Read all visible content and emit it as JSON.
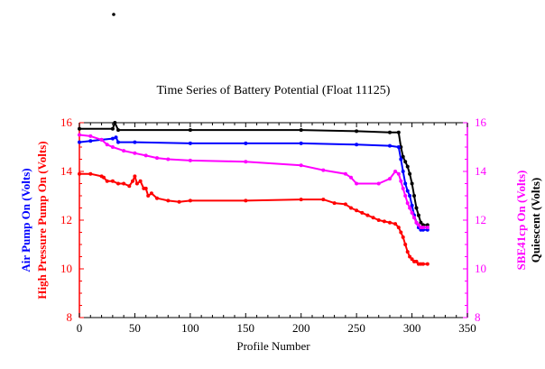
{
  "chart_data": {
    "type": "line",
    "title": "Time Series of Battery Potential (Float 11125)",
    "xlabel": "Profile Number",
    "xlim": [
      0,
      350
    ],
    "ylim": [
      8,
      16
    ],
    "xticks": [
      0,
      50,
      100,
      150,
      200,
      250,
      300,
      350
    ],
    "yticks": [
      8,
      10,
      12,
      14,
      16
    ],
    "left_axis_labels": [
      {
        "text": "Air Pump On (Volts)",
        "color": "#0000ff"
      },
      {
        "text": "High Pressure Pump On (Volts)",
        "color": "#ff0000"
      }
    ],
    "right_axis_labels": [
      {
        "text": "SBE41cp On (Volts)",
        "color": "#ff00ff"
      },
      {
        "text": "Quiescent (Volts)",
        "color": "#000000"
      }
    ],
    "left_axis_color": "#ff0000",
    "right_axis_color": "#ff00ff",
    "series": [
      {
        "color": "#000000",
        "x": [
          0,
          30,
          32,
          35,
          100,
          200,
          250,
          280,
          288,
          290,
          292,
          294,
          296,
          298,
          300,
          302,
          304,
          306,
          308,
          310,
          314
        ],
        "y": [
          15.75,
          15.75,
          16.0,
          15.7,
          15.7,
          15.7,
          15.65,
          15.6,
          15.6,
          15.0,
          14.6,
          14.4,
          14.2,
          13.9,
          13.5,
          13.0,
          12.5,
          12.2,
          11.9,
          11.8,
          11.8
        ]
      },
      {
        "color": "#0000ff",
        "x": [
          0,
          10,
          20,
          30,
          33,
          35,
          50,
          100,
          150,
          200,
          250,
          280,
          288,
          290,
          292,
          294,
          296,
          298,
          300,
          302,
          304,
          306,
          308,
          310,
          314
        ],
        "y": [
          15.2,
          15.25,
          15.3,
          15.35,
          15.4,
          15.2,
          15.2,
          15.15,
          15.15,
          15.15,
          15.1,
          15.05,
          15.0,
          14.5,
          14.0,
          13.5,
          13.2,
          13.0,
          12.6,
          12.2,
          11.9,
          11.7,
          11.6,
          11.6,
          11.6
        ]
      },
      {
        "color": "#ff00ff",
        "x": [
          0,
          10,
          20,
          25,
          30,
          40,
          50,
          60,
          70,
          80,
          100,
          150,
          200,
          220,
          240,
          245,
          250,
          270,
          280,
          285,
          288,
          290,
          292,
          294,
          296,
          298,
          300,
          302,
          304,
          306,
          308,
          310,
          314
        ],
        "y": [
          15.5,
          15.45,
          15.3,
          15.1,
          15.0,
          14.85,
          14.75,
          14.65,
          14.55,
          14.5,
          14.45,
          14.4,
          14.25,
          14.05,
          13.9,
          13.75,
          13.5,
          13.5,
          13.7,
          14.0,
          13.9,
          13.6,
          13.3,
          13.0,
          12.7,
          12.5,
          12.3,
          12.1,
          11.9,
          11.8,
          11.7,
          11.7,
          11.7
        ]
      },
      {
        "color": "#ff0000",
        "x": [
          0,
          10,
          20,
          22,
          25,
          30,
          35,
          40,
          45,
          48,
          50,
          52,
          55,
          58,
          60,
          62,
          65,
          70,
          80,
          90,
          100,
          150,
          200,
          220,
          230,
          240,
          245,
          250,
          255,
          260,
          265,
          270,
          275,
          280,
          285,
          288,
          290,
          292,
          294,
          296,
          298,
          300,
          302,
          304,
          306,
          308,
          310,
          314
        ],
        "y": [
          13.9,
          13.9,
          13.8,
          13.75,
          13.6,
          13.6,
          13.5,
          13.5,
          13.4,
          13.6,
          13.8,
          13.5,
          13.6,
          13.3,
          13.3,
          13.0,
          13.1,
          12.9,
          12.8,
          12.75,
          12.8,
          12.8,
          12.85,
          12.85,
          12.7,
          12.65,
          12.5,
          12.4,
          12.3,
          12.2,
          12.1,
          12.0,
          11.95,
          11.9,
          11.85,
          11.7,
          11.5,
          11.3,
          11.0,
          10.7,
          10.5,
          10.4,
          10.3,
          10.3,
          10.2,
          10.2,
          10.2,
          10.2
        ]
      }
    ]
  }
}
